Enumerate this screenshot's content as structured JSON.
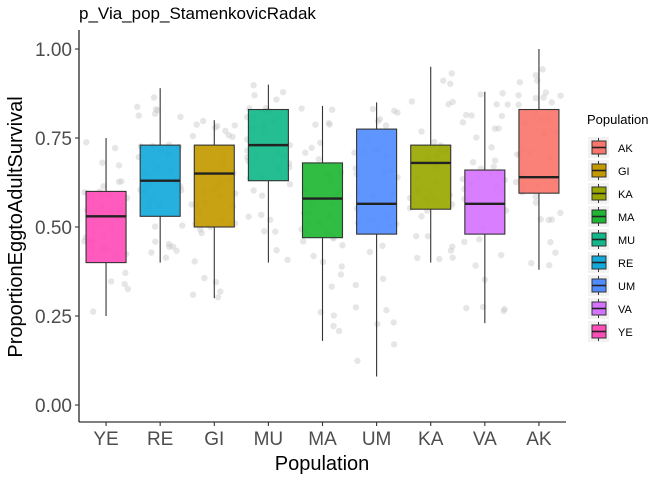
{
  "chart_data": {
    "type": "box",
    "title": "p_Via_pop_StamenkovicRadak",
    "xlabel": "Population",
    "ylabel": "ProportionEggtoAdultSurvival",
    "ylim": [
      -0.05,
      1.05
    ],
    "yticks": [
      "0.00",
      "0.25",
      "0.50",
      "0.75",
      "1.00"
    ],
    "ytick_values": [
      0,
      0.25,
      0.5,
      0.75,
      1.0
    ],
    "grid": false,
    "legend_position": "right",
    "legend_title": "Population",
    "legend_entries": [
      "AK",
      "GI",
      "KA",
      "MA",
      "MU",
      "RE",
      "UM",
      "VA",
      "YE"
    ],
    "colors": {
      "AK": "#F8766D",
      "GI": "#C49A00",
      "KA": "#99A800",
      "MA": "#1FB634",
      "MU": "#12B88A",
      "RE": "#12A9DB",
      "UM": "#518CFF",
      "VA": "#D573FF",
      "YE": "#FF4DB8"
    },
    "categories": [
      "YE",
      "RE",
      "GI",
      "MU",
      "MA",
      "UM",
      "KA",
      "VA",
      "AK"
    ],
    "boxes": [
      {
        "group": "YE",
        "whisker_low": 0.25,
        "q1": 0.4,
        "median": 0.53,
        "q3": 0.6,
        "whisker_high": 0.75
      },
      {
        "group": "RE",
        "whisker_low": 0.4,
        "q1": 0.53,
        "median": 0.63,
        "q3": 0.73,
        "whisker_high": 0.89
      },
      {
        "group": "GI",
        "whisker_low": 0.3,
        "q1": 0.5,
        "median": 0.65,
        "q3": 0.73,
        "whisker_high": 0.8
      },
      {
        "group": "MU",
        "whisker_low": 0.4,
        "q1": 0.63,
        "median": 0.73,
        "q3": 0.83,
        "whisker_high": 0.9
      },
      {
        "group": "MA",
        "whisker_low": 0.18,
        "q1": 0.47,
        "median": 0.58,
        "q3": 0.68,
        "whisker_high": 0.84
      },
      {
        "group": "UM",
        "whisker_low": 0.08,
        "q1": 0.48,
        "median": 0.565,
        "q3": 0.775,
        "whisker_high": 0.85
      },
      {
        "group": "KA",
        "whisker_low": 0.4,
        "q1": 0.55,
        "median": 0.68,
        "q3": 0.73,
        "whisker_high": 0.95
      },
      {
        "group": "VA",
        "whisker_low": 0.23,
        "q1": 0.48,
        "median": 0.565,
        "q3": 0.66,
        "whisker_high": 0.88
      },
      {
        "group": "AK",
        "whisker_low": 0.38,
        "q1": 0.595,
        "median": 0.64,
        "q3": 0.83,
        "whisker_high": 1.0
      }
    ]
  }
}
